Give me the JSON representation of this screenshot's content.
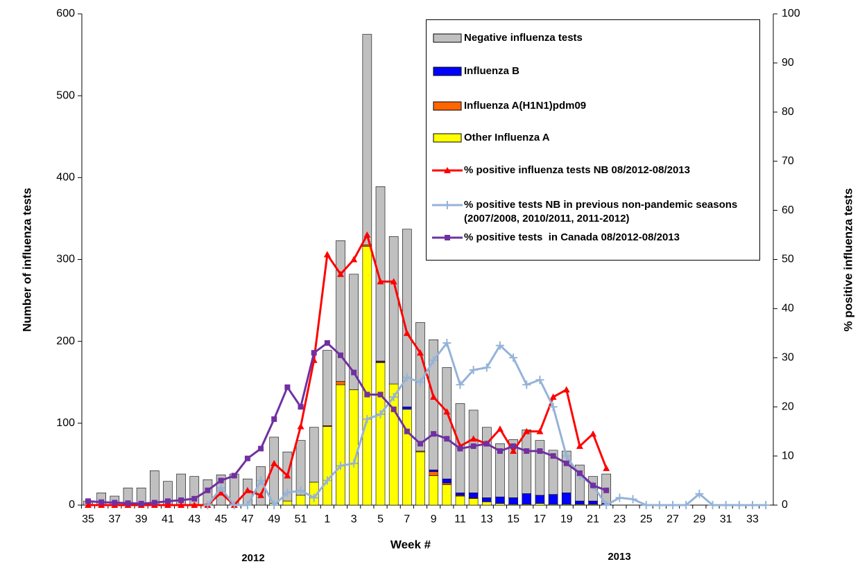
{
  "chart_data": {
    "type": "bar",
    "x_label": "Week #",
    "y_label": "Number of influenza tests",
    "y2_label": "% positive  influenza tests",
    "annotations": [
      "2012",
      "2013"
    ],
    "categories": [
      "35",
      null,
      "37",
      null,
      "39",
      null,
      "41",
      null,
      "43",
      null,
      "45",
      null,
      "47",
      null,
      "49",
      null,
      "51",
      null,
      "1",
      null,
      "3",
      null,
      "5",
      null,
      "7",
      null,
      "9",
      null,
      "11",
      null,
      "13",
      null,
      "15",
      null,
      "17",
      null,
      "19",
      null,
      "21",
      null,
      "23",
      null,
      "25",
      null,
      "27",
      null,
      "29",
      null,
      "31",
      null,
      "33",
      null
    ],
    "ylim": [
      0,
      600
    ],
    "yticks": [
      0,
      100,
      200,
      300,
      400,
      500,
      600
    ],
    "y2lim": [
      0,
      100
    ],
    "y2ticks": [
      0,
      10,
      20,
      30,
      40,
      50,
      60,
      70,
      80,
      90,
      100
    ],
    "series": [
      {
        "name": "Negative influenza tests",
        "type": "bar",
        "color": "#c0c0c0",
        "values": [
          5,
          15,
          11,
          21,
          21,
          42,
          29,
          38,
          35,
          31,
          37,
          38,
          32,
          47,
          81,
          60,
          67,
          67,
          92,
          172,
          141,
          257,
          213,
          180,
          217,
          157,
          159,
          136,
          109,
          101,
          86,
          65,
          71,
          78,
          67,
          54,
          51,
          44,
          30,
          36,
          null,
          null,
          null,
          null,
          null,
          null,
          null,
          null,
          null,
          null,
          null,
          null
        ]
      },
      {
        "name": "Influenza B",
        "type": "bar",
        "color": "#0000ff",
        "values": [
          0,
          0,
          0,
          0,
          0,
          0,
          0,
          0,
          0,
          0,
          0,
          0,
          0,
          0,
          0,
          0,
          0,
          0,
          0,
          0,
          0,
          0,
          1,
          0,
          3,
          0,
          2,
          5,
          3,
          6,
          5,
          8,
          8,
          13,
          10,
          12,
          14,
          4,
          4,
          2,
          null,
          null,
          null,
          null,
          null,
          null,
          null,
          null,
          null,
          null,
          null,
          null
        ]
      },
      {
        "name": "Influenza A(H1N1)pdm09",
        "type": "bar",
        "color": "#ff6600",
        "values": [
          0,
          0,
          0,
          0,
          0,
          0,
          0,
          0,
          0,
          0,
          0,
          0,
          0,
          0,
          0,
          0,
          0,
          0,
          1,
          4,
          0,
          2,
          1,
          0,
          0,
          1,
          5,
          2,
          1,
          1,
          0,
          0,
          0,
          0,
          0,
          0,
          0,
          0,
          0,
          0,
          null,
          null,
          null,
          null,
          null,
          null,
          null,
          null,
          null,
          null,
          null,
          null
        ]
      },
      {
        "name": "Other Influenza A",
        "type": "bar",
        "color": "#ffff00",
        "values": [
          0,
          0,
          0,
          0,
          0,
          0,
          0,
          0,
          0,
          0,
          0,
          0,
          0,
          0,
          2,
          5,
          12,
          28,
          96,
          147,
          141,
          316,
          174,
          148,
          117,
          65,
          36,
          25,
          11,
          8,
          4,
          2,
          1,
          1,
          2,
          1,
          1,
          1,
          1,
          0,
          null,
          null,
          null,
          null,
          null,
          null,
          null,
          null,
          null,
          null,
          null,
          null
        ]
      },
      {
        "name": "% positive influenza tests NB 08/2012-08/2013",
        "type": "line",
        "axis": "y2",
        "color": "#ff0000",
        "marker": "triangle",
        "values": [
          0,
          0,
          0,
          0,
          0,
          0,
          0,
          0,
          0,
          0,
          2.5,
          0,
          3,
          2,
          8.5,
          6,
          16,
          29.5,
          51,
          47,
          50,
          55,
          45.5,
          45.5,
          35,
          31,
          22,
          19,
          12,
          13.5,
          12.5,
          15.5,
          11,
          15,
          15,
          22,
          23.5,
          12,
          14.5,
          7.5,
          null,
          null,
          null,
          null,
          null,
          null,
          null,
          null,
          null,
          null,
          null,
          null
        ]
      },
      {
        "name": "% positive tests NB in previous non-pandemic seasons (2007/2008, 2010/2011, 2011-2012)",
        "type": "line",
        "axis": "y2",
        "color": "#95b3d7",
        "marker": "plus",
        "values": [
          null,
          null,
          null,
          null,
          null,
          null,
          null,
          null,
          null,
          0,
          3.5,
          0,
          0,
          5,
          0,
          2.5,
          3,
          1.5,
          5,
          8,
          8.5,
          17.5,
          18.5,
          22,
          26,
          25,
          29.5,
          33,
          24.5,
          27.5,
          28,
          32.5,
          30,
          24.5,
          25.5,
          20,
          10,
          6,
          4,
          0,
          1.5,
          1.2,
          0,
          0,
          0,
          0,
          2.3,
          0,
          0,
          0,
          0,
          0
        ]
      },
      {
        "name": "% positive tests  in Canada 08/2012-08/2013",
        "type": "line",
        "axis": "y2",
        "color": "#7030a0",
        "marker": "square",
        "values": [
          0.8,
          0.6,
          0.5,
          0.4,
          0.3,
          0.5,
          0.8,
          1,
          1.3,
          3,
          5,
          6,
          9.5,
          11.5,
          17.5,
          24,
          20,
          31,
          33,
          30.5,
          27,
          22.5,
          22.5,
          19.5,
          15,
          12.5,
          14.5,
          13.5,
          11.5,
          12,
          12.5,
          11,
          12,
          11,
          11,
          10,
          8.5,
          6.5,
          4,
          3,
          null,
          null,
          null,
          null,
          null,
          null,
          null,
          null,
          null,
          null,
          null,
          null
        ]
      }
    ]
  }
}
